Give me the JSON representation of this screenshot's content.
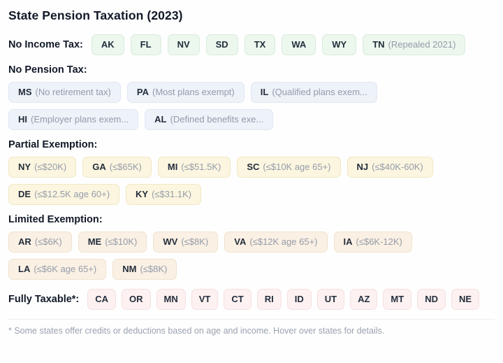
{
  "title": "State Pension Taxation (2023)",
  "footnote": "* Some states offer credits or deductions based on age and income. Hover over states for details.",
  "palette": {
    "green": {
      "bg": "#ecf7ee",
      "border": "#d8ecdb"
    },
    "blue": {
      "bg": "#eef2f9",
      "border": "#e0e7f3"
    },
    "yellow": {
      "bg": "#fcf6e0",
      "border": "#f0e7c4"
    },
    "tan": {
      "bg": "#faf0e4",
      "border": "#efe2cd"
    },
    "pink": {
      "bg": "#fdf1f1",
      "border": "#f6e0e0"
    }
  },
  "sections": [
    {
      "label": "No Income Tax:",
      "inline": true,
      "compact": false,
      "color": "green",
      "chips": [
        {
          "state": "AK"
        },
        {
          "state": "FL"
        },
        {
          "state": "NV"
        },
        {
          "state": "SD"
        },
        {
          "state": "TX"
        },
        {
          "state": "WA"
        },
        {
          "state": "WY"
        },
        {
          "state": "TN",
          "detail": "(Repealed 2021)"
        }
      ]
    },
    {
      "label": "No Pension Tax:",
      "inline": false,
      "compact": false,
      "color": "blue",
      "chips": [
        {
          "state": "MS",
          "detail": "(No retirement tax)"
        },
        {
          "state": "PA",
          "detail": "(Most plans exempt)"
        },
        {
          "state": "IL",
          "detail": "(Qualified plans exem..."
        },
        {
          "state": "HI",
          "detail": "(Employer plans exem..."
        },
        {
          "state": "AL",
          "detail": "(Defined benefits exe..."
        }
      ]
    },
    {
      "label": "Partial Exemption:",
      "inline": false,
      "compact": false,
      "color": "yellow",
      "chips": [
        {
          "state": "NY",
          "detail": "(≤$20K)"
        },
        {
          "state": "GA",
          "detail": "(≤$65K)"
        },
        {
          "state": "MI",
          "detail": "(≤$51.5K)"
        },
        {
          "state": "SC",
          "detail": "(≤$10K age 65+)"
        },
        {
          "state": "NJ",
          "detail": "(≤$40K-60K)"
        },
        {
          "state": "DE",
          "detail": "(≤$12.5K age 60+)"
        },
        {
          "state": "KY",
          "detail": "(≤$31.1K)"
        }
      ]
    },
    {
      "label": "Limited Exemption:",
      "inline": false,
      "compact": false,
      "color": "tan",
      "chips": [
        {
          "state": "AR",
          "detail": "(≤$6K)"
        },
        {
          "state": "ME",
          "detail": "(≤$10K)"
        },
        {
          "state": "WV",
          "detail": "(≤$8K)"
        },
        {
          "state": "VA",
          "detail": "(≤$12K age 65+)"
        },
        {
          "state": "IA",
          "detail": "(≤$6K-12K)"
        },
        {
          "state": "LA",
          "detail": "(≤$6K age 65+)"
        },
        {
          "state": "NM",
          "detail": "(≤$8K)"
        }
      ]
    },
    {
      "label": "Fully Taxable*:",
      "inline": true,
      "compact": true,
      "color": "pink",
      "chips": [
        {
          "state": "CA"
        },
        {
          "state": "OR"
        },
        {
          "state": "MN"
        },
        {
          "state": "VT"
        },
        {
          "state": "CT"
        },
        {
          "state": "RI"
        },
        {
          "state": "ID"
        },
        {
          "state": "UT"
        },
        {
          "state": "AZ"
        },
        {
          "state": "MT"
        },
        {
          "state": "ND"
        },
        {
          "state": "NE"
        }
      ]
    }
  ]
}
